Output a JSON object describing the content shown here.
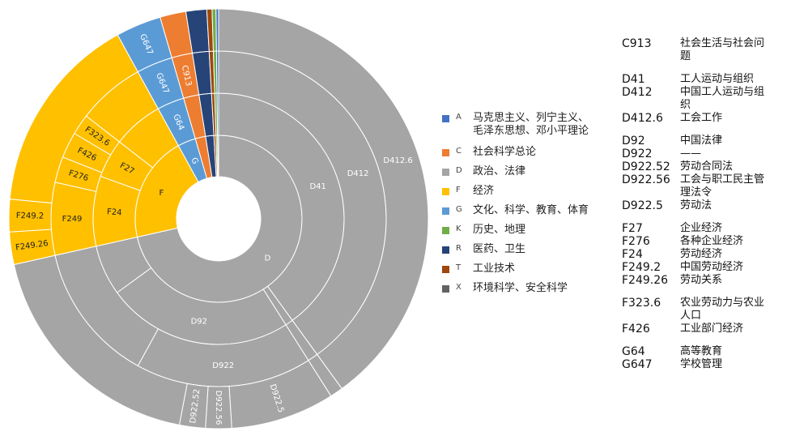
{
  "chart_data": {
    "type": "sunburst",
    "title": "",
    "legend_position": "right",
    "colors": {
      "A": "#4472c4",
      "C": "#ed7d31",
      "D": "#a5a5a5",
      "F": "#ffc000",
      "G": "#5b9bd5",
      "K": "#70ad47",
      "R": "#264478",
      "T": "#9e480e",
      "X": "#636363"
    },
    "legend": [
      {
        "code": "A",
        "label": "马克思主义、列宁主义、毛泽东思想、邓小平理论",
        "lines": [
          "马克思主义、列宁主义、",
          "毛泽东思想、邓小平理论"
        ]
      },
      {
        "code": "C",
        "label": "社会科学总论",
        "lines": [
          "社会科学总论"
        ]
      },
      {
        "code": "D",
        "label": "政治、法律",
        "lines": [
          "政治、法律"
        ]
      },
      {
        "code": "F",
        "label": "经济",
        "lines": [
          "经济"
        ]
      },
      {
        "code": "G",
        "label": "文化、科学、教育、体育",
        "lines": [
          "文化、科学、教育、体育"
        ]
      },
      {
        "code": "K",
        "label": "历史、地理",
        "lines": [
          "历史、地理"
        ]
      },
      {
        "code": "R",
        "label": "医药、卫生",
        "lines": [
          "医药、卫生"
        ]
      },
      {
        "code": "T",
        "label": "工业技术",
        "lines": [
          "工业技术"
        ]
      },
      {
        "code": "X",
        "label": "环境科学、安全科学",
        "lines": [
          "环境科学、安全科学"
        ]
      }
    ],
    "rings": [
      [
        {
          "label": "D",
          "cat": "D",
          "value": 71.5
        },
        {
          "label": "F",
          "cat": "F",
          "value": 20.5
        },
        {
          "label": "G",
          "cat": "G",
          "value": 3.5
        },
        {
          "label": "",
          "cat": "C",
          "value": 2.0
        },
        {
          "label": "",
          "cat": "R",
          "value": 1.6
        },
        {
          "label": "",
          "cat": "T",
          "value": 0.4
        },
        {
          "label": "",
          "cat": "K",
          "value": 0.3
        },
        {
          "label": "",
          "cat": "A",
          "value": 0.2
        }
      ],
      [
        {
          "label": "D41",
          "cat": "D",
          "value": 40.0
        },
        {
          "label": "",
          "cat": "D",
          "value": 1.0
        },
        {
          "label": "D92",
          "cat": "D",
          "value": 24.0
        },
        {
          "label": "",
          "cat": "D",
          "value": 6.5
        },
        {
          "label": "F24",
          "cat": "F",
          "value": 9.0
        },
        {
          "label": "F27",
          "cat": "F",
          "value": 5.0
        },
        {
          "label": "",
          "cat": "F",
          "value": 6.5
        },
        {
          "label": "G64",
          "cat": "G",
          "value": 3.5
        },
        {
          "label": "",
          "cat": "C",
          "value": 2.0
        },
        {
          "label": "",
          "cat": "R",
          "value": 1.6
        },
        {
          "label": "",
          "cat": "T",
          "value": 0.4
        },
        {
          "label": "",
          "cat": "K",
          "value": 0.3
        },
        {
          "label": "",
          "cat": "A",
          "value": 0.2
        }
      ],
      [
        {
          "label": "D412",
          "cat": "D",
          "value": 40.0
        },
        {
          "label": "",
          "cat": "D",
          "value": 1.0
        },
        {
          "label": "D922",
          "cat": "D",
          "value": 17.0
        },
        {
          "label": "",
          "cat": "D",
          "value": 13.5
        },
        {
          "label": "F249",
          "cat": "F",
          "value": 7.0
        },
        {
          "label": "F276",
          "cat": "F",
          "value": 2.5
        },
        {
          "label": "F426",
          "cat": "F",
          "value": 2.5
        },
        {
          "label": "F323.6",
          "cat": "F",
          "value": 2.0
        },
        {
          "label": "",
          "cat": "F",
          "value": 6.5
        },
        {
          "label": "G647",
          "cat": "G",
          "value": 3.5
        },
        {
          "label": "C913",
          "cat": "C",
          "value": 2.0
        },
        {
          "label": "",
          "cat": "R",
          "value": 1.6
        },
        {
          "label": "",
          "cat": "T",
          "value": 0.4
        },
        {
          "label": "",
          "cat": "K",
          "value": 0.3
        },
        {
          "label": "",
          "cat": "A",
          "value": 0.2
        }
      ],
      [
        {
          "label": "D412.6",
          "cat": "D",
          "value": 40.0
        },
        {
          "label": "",
          "cat": "D",
          "value": 1.0
        },
        {
          "label": "D922.5",
          "cat": "D",
          "value": 8.0
        },
        {
          "label": "D922.56",
          "cat": "D",
          "value": 2.0
        },
        {
          "label": "D922.52",
          "cat": "D",
          "value": 2.0
        },
        {
          "label": "",
          "cat": "D",
          "value": 18.5
        },
        {
          "label": "F249.26",
          "cat": "F",
          "value": 2.5
        },
        {
          "label": "F249.2",
          "cat": "F",
          "value": 2.5
        },
        {
          "label": "",
          "cat": "F",
          "value": 15.5
        },
        {
          "label": "G647",
          "cat": "G",
          "value": 3.5
        },
        {
          "label": "",
          "cat": "C",
          "value": 2.0
        },
        {
          "label": "",
          "cat": "R",
          "value": 1.6
        },
        {
          "label": "",
          "cat": "T",
          "value": 0.4
        },
        {
          "label": "",
          "cat": "K",
          "value": 0.3
        },
        {
          "label": "",
          "cat": "A",
          "value": 0.2
        }
      ]
    ]
  },
  "code_list": [
    [
      {
        "code": "C913",
        "desc": "社会生活与社会问题"
      }
    ],
    [
      {
        "code": "D41",
        "desc": "工人运动与组织"
      },
      {
        "code": "D412",
        "desc": "中国工人运动与组织"
      },
      {
        "code": "D412.6",
        "desc": "工会工作"
      }
    ],
    [
      {
        "code": "D92",
        "desc": "中国法律"
      },
      {
        "code": "D922",
        "desc": "——"
      },
      {
        "code": "D922.52",
        "desc": "劳动合同法"
      },
      {
        "code": "D922.56",
        "desc": "工会与职工民主管理法令"
      },
      {
        "code": "D922.5",
        "desc": "劳动法"
      }
    ],
    [
      {
        "code": "F27",
        "desc": "企业经济"
      },
      {
        "code": "F276",
        "desc": "各种企业经济"
      },
      {
        "code": "F24",
        "desc": "劳动经济"
      },
      {
        "code": "F249.2",
        "desc": "中国劳动经济"
      },
      {
        "code": "F249.26",
        "desc": "劳动关系"
      }
    ],
    [
      {
        "code": "F323.6",
        "desc": "农业劳动力与农业人口"
      },
      {
        "code": "F426",
        "desc": "工业部门经济"
      }
    ],
    [
      {
        "code": "G64",
        "desc": "高等教育"
      },
      {
        "code": "G647",
        "desc": "学校管理"
      }
    ]
  ]
}
